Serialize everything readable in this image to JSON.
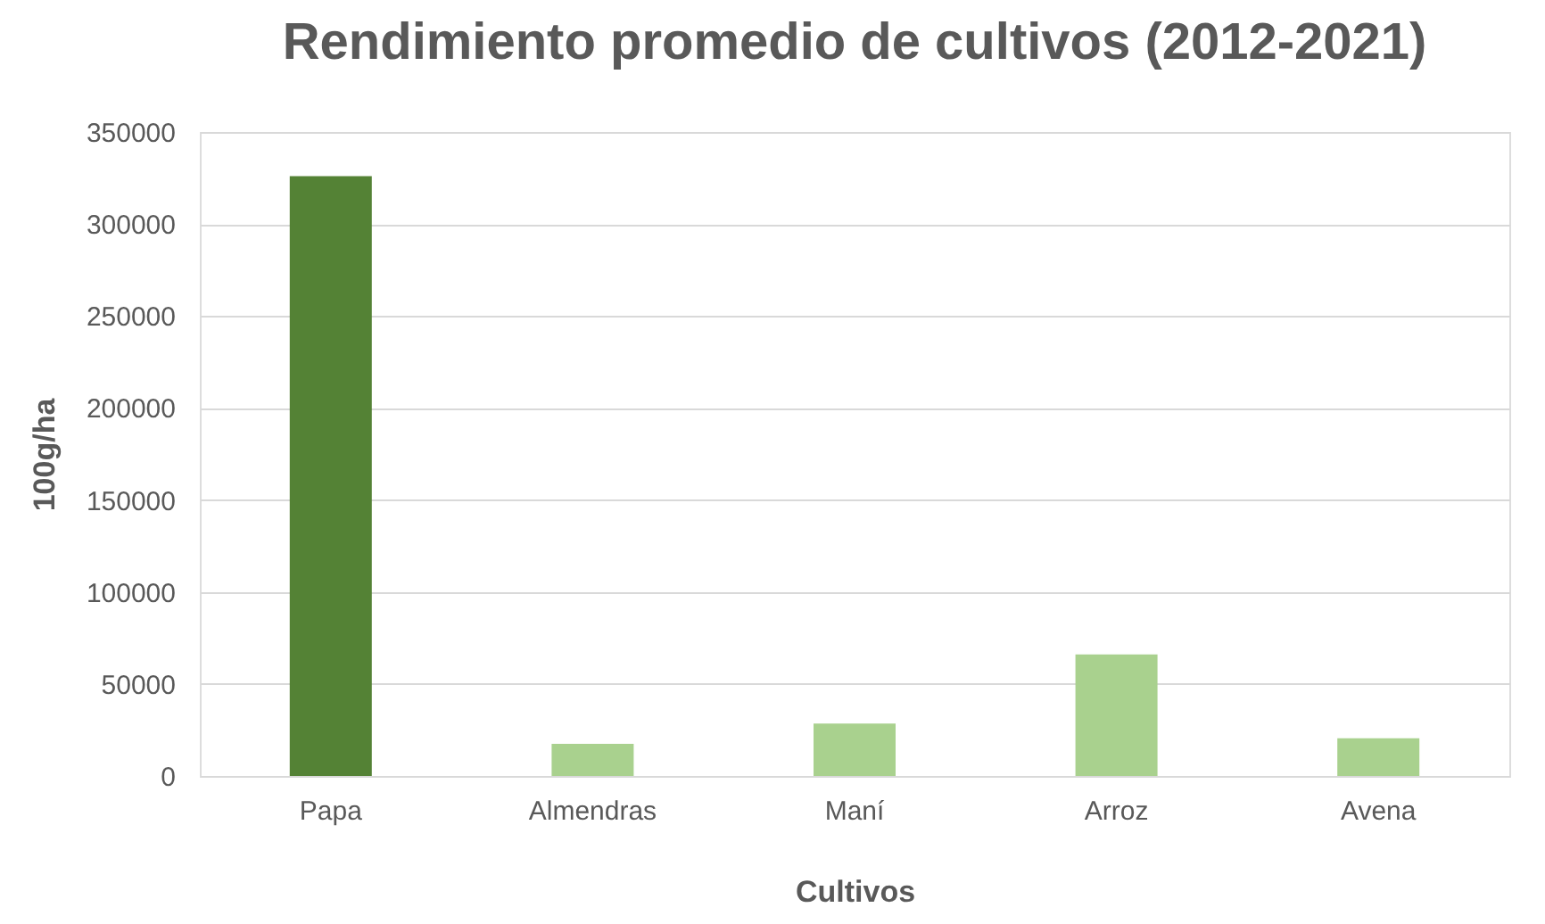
{
  "chart_data": {
    "type": "bar",
    "title": "Rendimiento promedio de cultivos (2012-2021)",
    "xlabel": "Cultivos",
    "ylabel": "100g/ha",
    "categories": [
      "Papa",
      "Almendras",
      "Maní",
      "Arroz",
      "Avena"
    ],
    "values": [
      326000,
      17500,
      28500,
      66000,
      20500
    ],
    "colors": [
      "#548235",
      "#a9d18e",
      "#a9d18e",
      "#a9d18e",
      "#a9d18e"
    ],
    "ylim": [
      0,
      350000
    ],
    "yticks": [
      0,
      50000,
      100000,
      150000,
      200000,
      250000,
      300000,
      350000
    ],
    "grid": "y"
  }
}
